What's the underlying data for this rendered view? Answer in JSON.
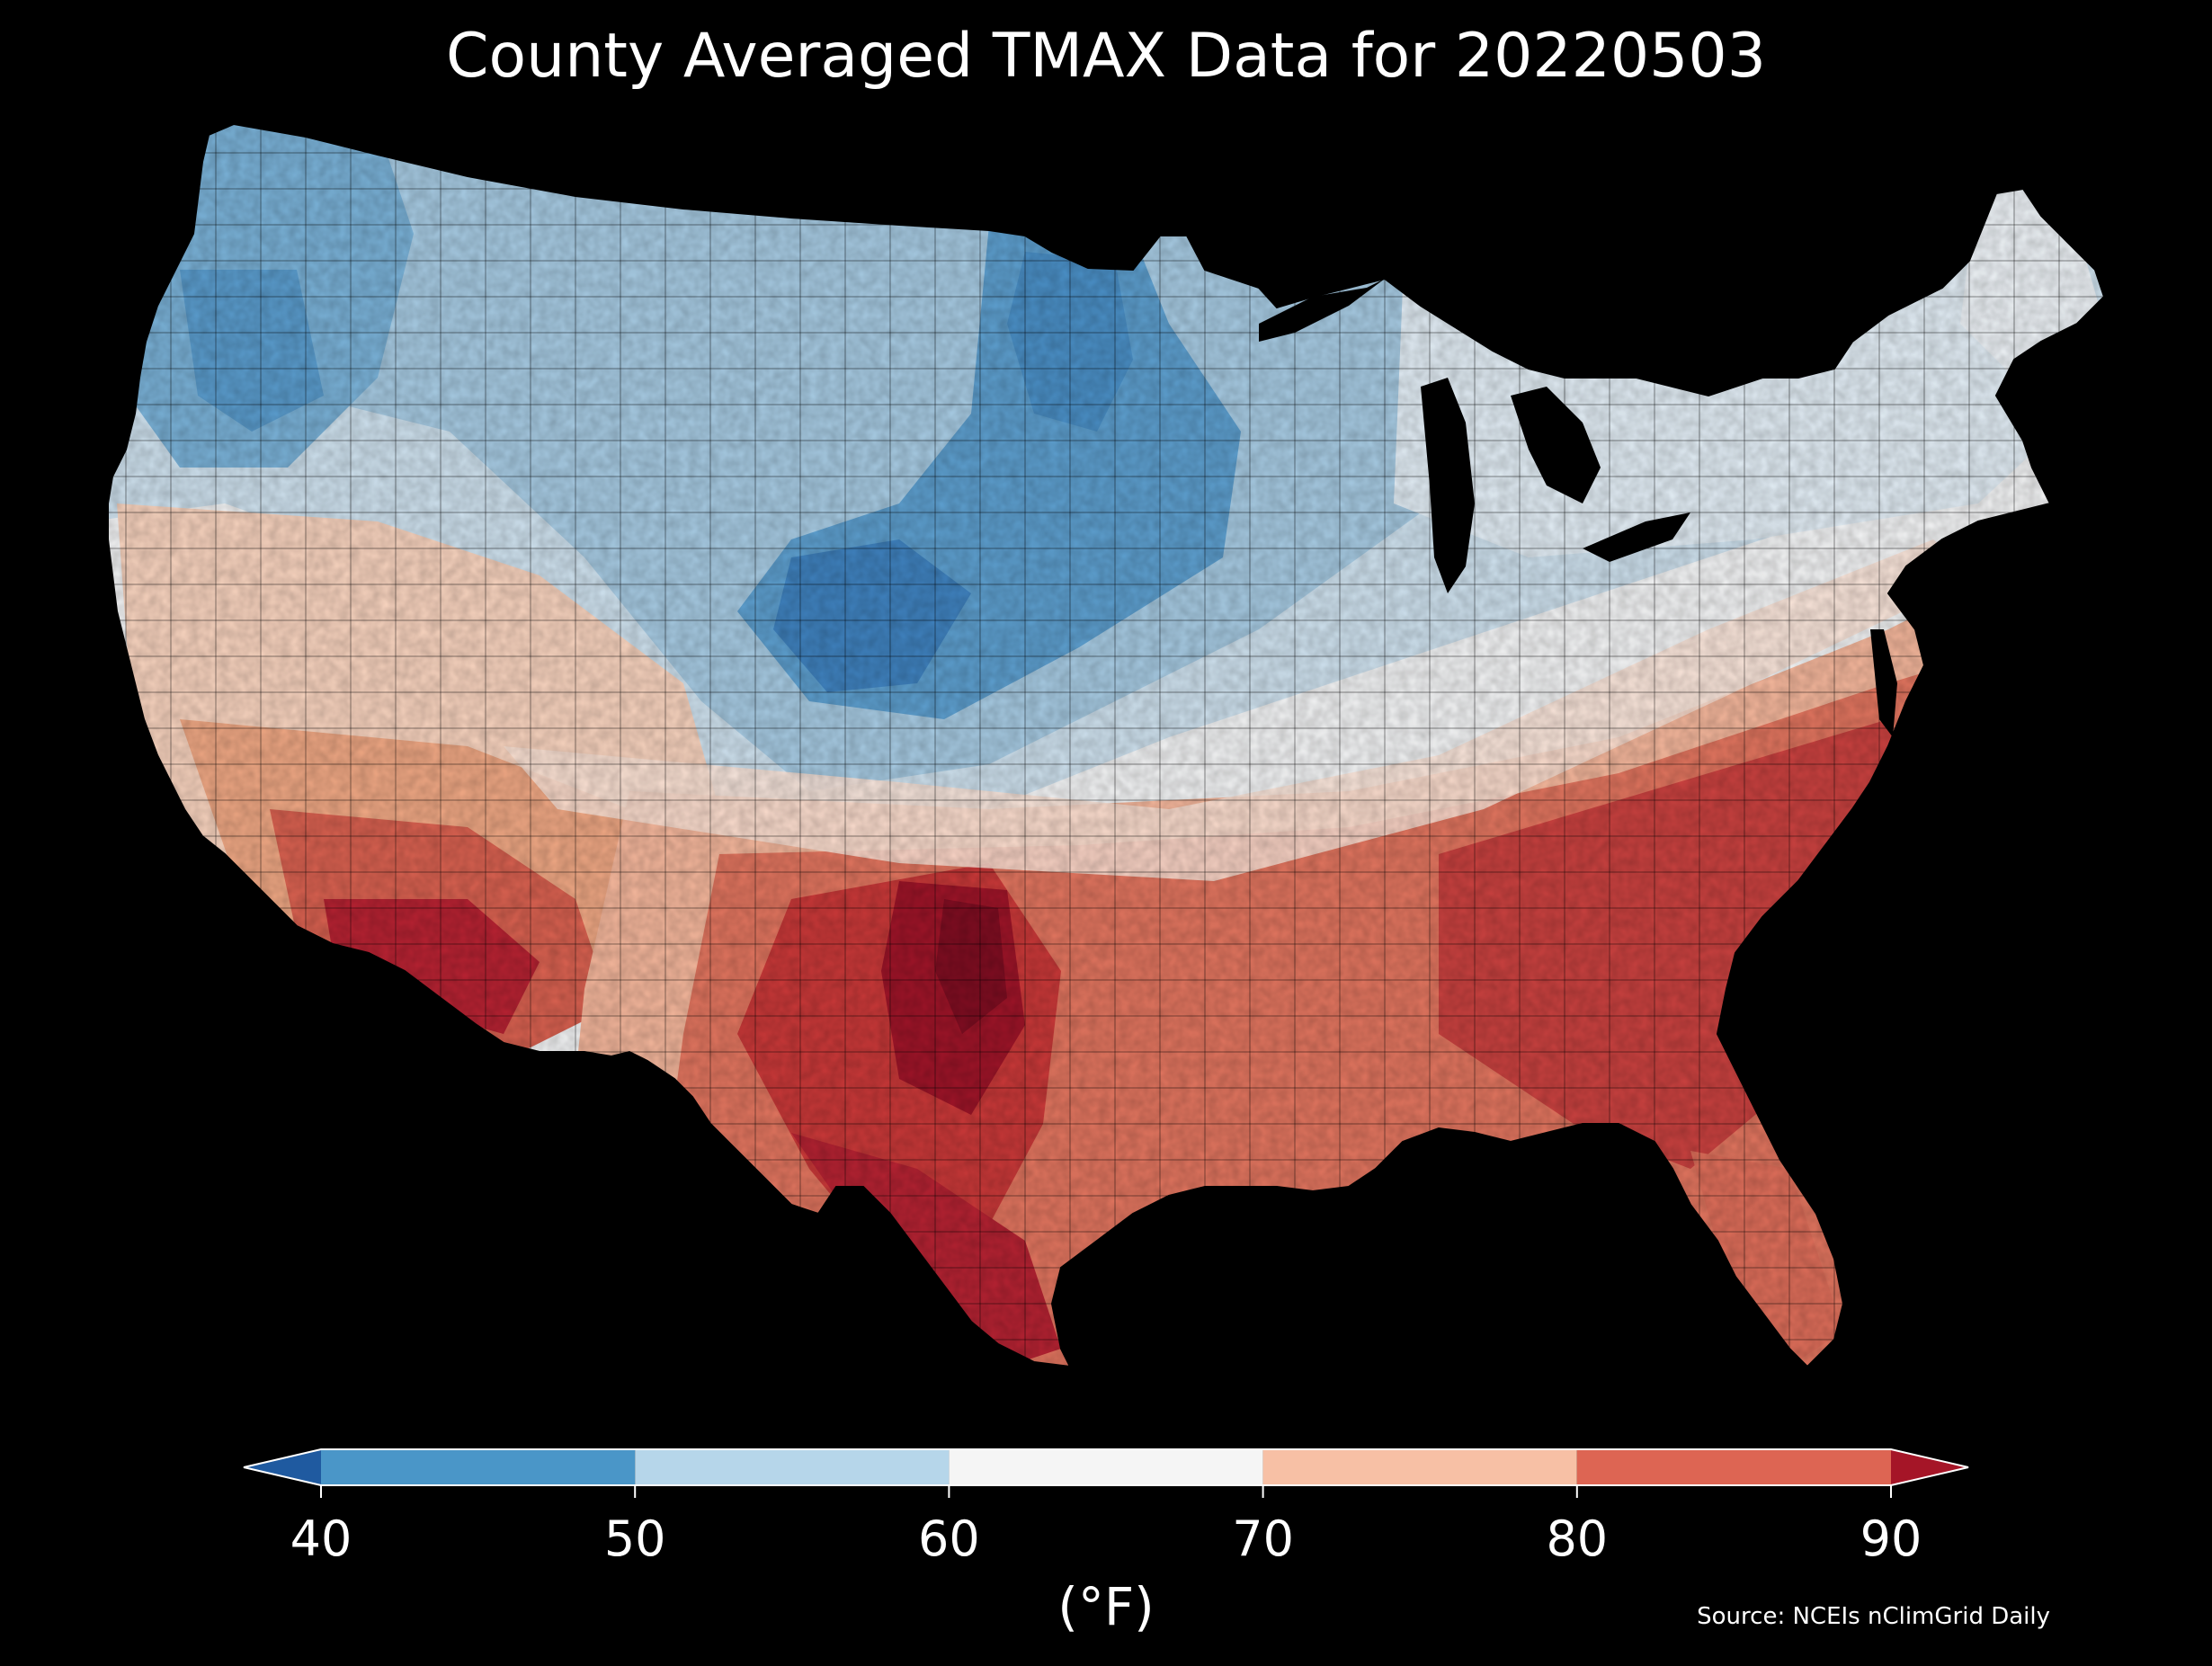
{
  "title": "County Averaged TMAX Data for 20220503",
  "colorbar": {
    "unit": "(°F)",
    "ticks": [
      "40",
      "50",
      "60",
      "70",
      "80",
      "90"
    ],
    "bins": [
      {
        "range": [
          40,
          50
        ],
        "color": "#4a96c8"
      },
      {
        "range": [
          50,
          60
        ],
        "color": "#b6d6ea"
      },
      {
        "range": [
          60,
          70
        ],
        "color": "#f5f5f5"
      },
      {
        "range": [
          70,
          80
        ],
        "color": "#f7c0a5"
      },
      {
        "range": [
          80,
          90
        ],
        "color": "#dd6553"
      }
    ],
    "under_color": "#1f5aa0",
    "over_color": "#a51527",
    "extend": "both"
  },
  "source": "Source: NCEIs nClimGrid Daily",
  "map": {
    "region": "Contiguous United States",
    "variable": "TMAX",
    "date": "20220503",
    "background": "#000000"
  }
}
